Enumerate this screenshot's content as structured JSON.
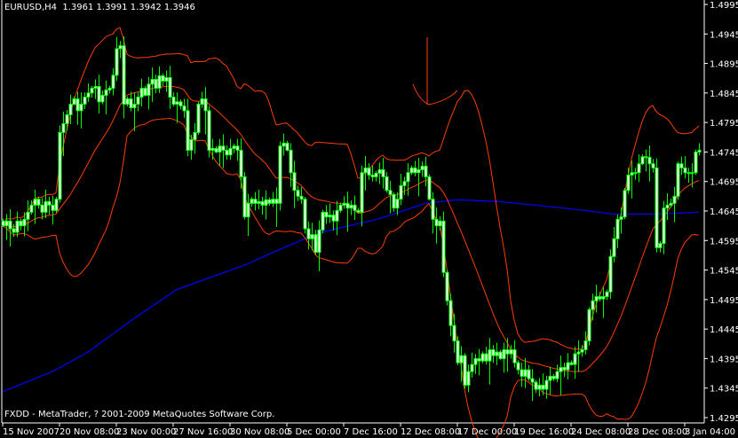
{
  "header": {
    "title": "EURUSD,H4  1.3961 1.3991 1.3942 1.3946"
  },
  "footer": {
    "copyright": "FXDD - MetaTrader, ? 2001-2009 MetaQuotes Software Corp."
  },
  "colors": {
    "background": "#000000",
    "candle": "#00ff00",
    "candle_body_fill": "#ffffff",
    "bands": "#ff3c00",
    "moving_average": "#0000ff",
    "axis": "#ffffff"
  },
  "chart_data": {
    "type": "candlestick",
    "symbol": "EURUSD",
    "timeframe": "H4",
    "ylim": [
      1.4295,
      1.4995
    ],
    "y_ticks": [
      "1.4995",
      "1.4945",
      "1.4895",
      "1.4845",
      "1.4795",
      "1.4745",
      "1.4695",
      "1.4645",
      "1.4595",
      "1.4545",
      "1.4495",
      "1.4445",
      "1.4395",
      "1.4345",
      "1.4295"
    ],
    "x_ticks": [
      {
        "bar": 0,
        "label": "15 Nov 2007"
      },
      {
        "bar": 16,
        "label": "20 Nov 08:00"
      },
      {
        "bar": 32,
        "label": "23 Nov 00:00"
      },
      {
        "bar": 48,
        "label": "27 Nov 16:00"
      },
      {
        "bar": 64,
        "label": "30 Nov 08:00"
      },
      {
        "bar": 80,
        "label": "5 Dec 00:00"
      },
      {
        "bar": 96,
        "label": "7 Dec 16:00"
      },
      {
        "bar": 112,
        "label": "12 Dec 08:00"
      },
      {
        "bar": 128,
        "label": "17 Dec 00:00"
      },
      {
        "bar": 144,
        "label": "19 Dec 16:00"
      },
      {
        "bar": 160,
        "label": "24 Dec 08:00"
      },
      {
        "bar": 176,
        "label": "28 Dec 08:00"
      },
      {
        "bar": 192,
        "label": "3 Jan 04:00"
      }
    ],
    "closes": [
      1.462,
      1.4628,
      1.4615,
      1.4609,
      1.4628,
      1.462,
      1.4631,
      1.4643,
      1.4655,
      1.4665,
      1.4655,
      1.4643,
      1.4661,
      1.4655,
      1.4646,
      1.4665,
      1.4778,
      1.4793,
      1.4808,
      1.4826,
      1.4835,
      1.4815,
      1.4826,
      1.4838,
      1.4845,
      1.4853,
      1.4856,
      1.483,
      1.4841,
      1.485,
      1.4853,
      1.4875,
      1.492,
      1.4925,
      1.4826,
      1.4835,
      1.482,
      1.4826,
      1.4838,
      1.4853,
      1.4841,
      1.486,
      1.4868,
      1.4853,
      1.4874,
      1.4865,
      1.4871,
      1.4838,
      1.4826,
      1.483,
      1.4823,
      1.4815,
      1.4748,
      1.4766,
      1.4778,
      1.4826,
      1.4835,
      1.4815,
      1.4748,
      1.4751,
      1.4745,
      1.4755,
      1.4748,
      1.474,
      1.4751,
      1.4755,
      1.4748,
      1.4703,
      1.4635,
      1.4658,
      1.4665,
      1.4658,
      1.4661,
      1.4655,
      1.4664,
      1.4658,
      1.4665,
      1.4658,
      1.4755,
      1.476,
      1.4748,
      1.471,
      1.468,
      1.467,
      1.4665,
      1.4615,
      1.4598,
      1.4605,
      1.4575,
      1.4613,
      1.4643,
      1.4635,
      1.4638,
      1.4628,
      1.4646,
      1.4655,
      1.4658,
      1.465,
      1.4655,
      1.4646,
      1.4643,
      1.471,
      1.4718,
      1.4706,
      1.4703,
      1.4709,
      1.4715,
      1.4703,
      1.468,
      1.4673,
      1.465,
      1.4665,
      1.4688,
      1.4695,
      1.471,
      1.4718,
      1.471,
      1.4715,
      1.4721,
      1.4703,
      1.4665,
      1.4631,
      1.462,
      1.4628,
      1.4541,
      1.4493,
      1.4451,
      1.4425,
      1.4388,
      1.44,
      1.435,
      1.4373,
      1.4385,
      1.4395,
      1.4391,
      1.4403,
      1.4391,
      1.441,
      1.44,
      1.4406,
      1.4395,
      1.441,
      1.4403,
      1.441,
      1.4388,
      1.4376,
      1.4365,
      1.4376,
      1.4361,
      1.4355,
      1.4343,
      1.435,
      1.4343,
      1.4358,
      1.4365,
      1.4361,
      1.4373,
      1.438,
      1.4376,
      1.4388,
      1.4385,
      1.4403,
      1.4406,
      1.441,
      1.4425,
      1.4478,
      1.4493,
      1.45,
      1.4496,
      1.45,
      1.4508,
      1.4568,
      1.4598,
      1.4631,
      1.4635,
      1.468,
      1.4706,
      1.471,
      1.471,
      1.4725,
      1.4737,
      1.4736,
      1.4725,
      1.4718,
      1.4583,
      1.459,
      1.465,
      1.4655,
      1.4658,
      1.467,
      1.4725,
      1.4718,
      1.471,
      1.4709,
      1.471,
      1.4745,
      1.4748
    ],
    "moving_average": [
      [
        0,
        1.4339
      ],
      [
        14,
        1.4373
      ],
      [
        24,
        1.4406
      ],
      [
        37,
        1.4463
      ],
      [
        49,
        1.4512
      ],
      [
        68,
        1.4553
      ],
      [
        75,
        1.4572
      ],
      [
        89,
        1.4608
      ],
      [
        106,
        1.4632
      ],
      [
        119,
        1.4658
      ],
      [
        128,
        1.4664
      ],
      [
        140,
        1.4661
      ],
      [
        158,
        1.465
      ],
      [
        172,
        1.464
      ],
      [
        185,
        1.464
      ],
      [
        196,
        1.4643
      ]
    ],
    "bollinger": {
      "period": 20,
      "deviations": 2
    }
  }
}
